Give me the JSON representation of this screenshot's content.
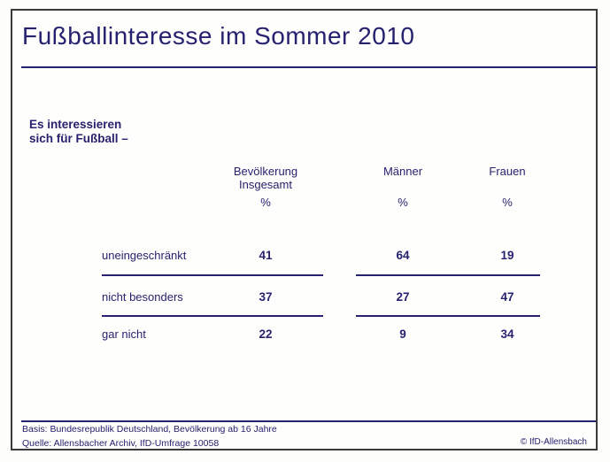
{
  "title": "Fußballinteresse im Sommer 2010",
  "subtitle": {
    "line1": "Es interessieren",
    "line2": "sich für Fußball –"
  },
  "table": {
    "columns": [
      {
        "line1": "Bevölkerung",
        "line2": "Insgesamt",
        "unit": "%"
      },
      {
        "line1": "Männer",
        "line2": "",
        "unit": "%"
      },
      {
        "line1": "Frauen",
        "line2": "",
        "unit": "%"
      }
    ],
    "rows": [
      {
        "label": "uneingeschränkt",
        "values": [
          "41",
          "64",
          "19"
        ]
      },
      {
        "label": "nicht besonders",
        "values": [
          "37",
          "27",
          "47"
        ]
      },
      {
        "label": "gar nicht",
        "values": [
          "22",
          "9",
          "34"
        ]
      }
    ]
  },
  "footer": {
    "basis": "Basis: Bundesrepublik Deutschland, Bevölkerung ab 16 Jahre",
    "quelle": "Quelle: Allensbacher Archiv, IfD-Umfrage 10058",
    "copyright": "© IfD-Allensbach"
  },
  "colors": {
    "navy": "#26226f",
    "frame": "#3a3a3a"
  },
  "chart_data": {
    "type": "table",
    "title": "Fußballinteresse im Sommer 2010",
    "subtitle": "Es interessieren sich für Fußball –",
    "unit": "%",
    "categories": [
      "uneingeschränkt",
      "nicht besonders",
      "gar nicht"
    ],
    "series": [
      {
        "name": "Bevölkerung Insgesamt",
        "values": [
          41,
          37,
          22
        ]
      },
      {
        "name": "Männer",
        "values": [
          64,
          27,
          9
        ]
      },
      {
        "name": "Frauen",
        "values": [
          19,
          47,
          34
        ]
      }
    ]
  }
}
